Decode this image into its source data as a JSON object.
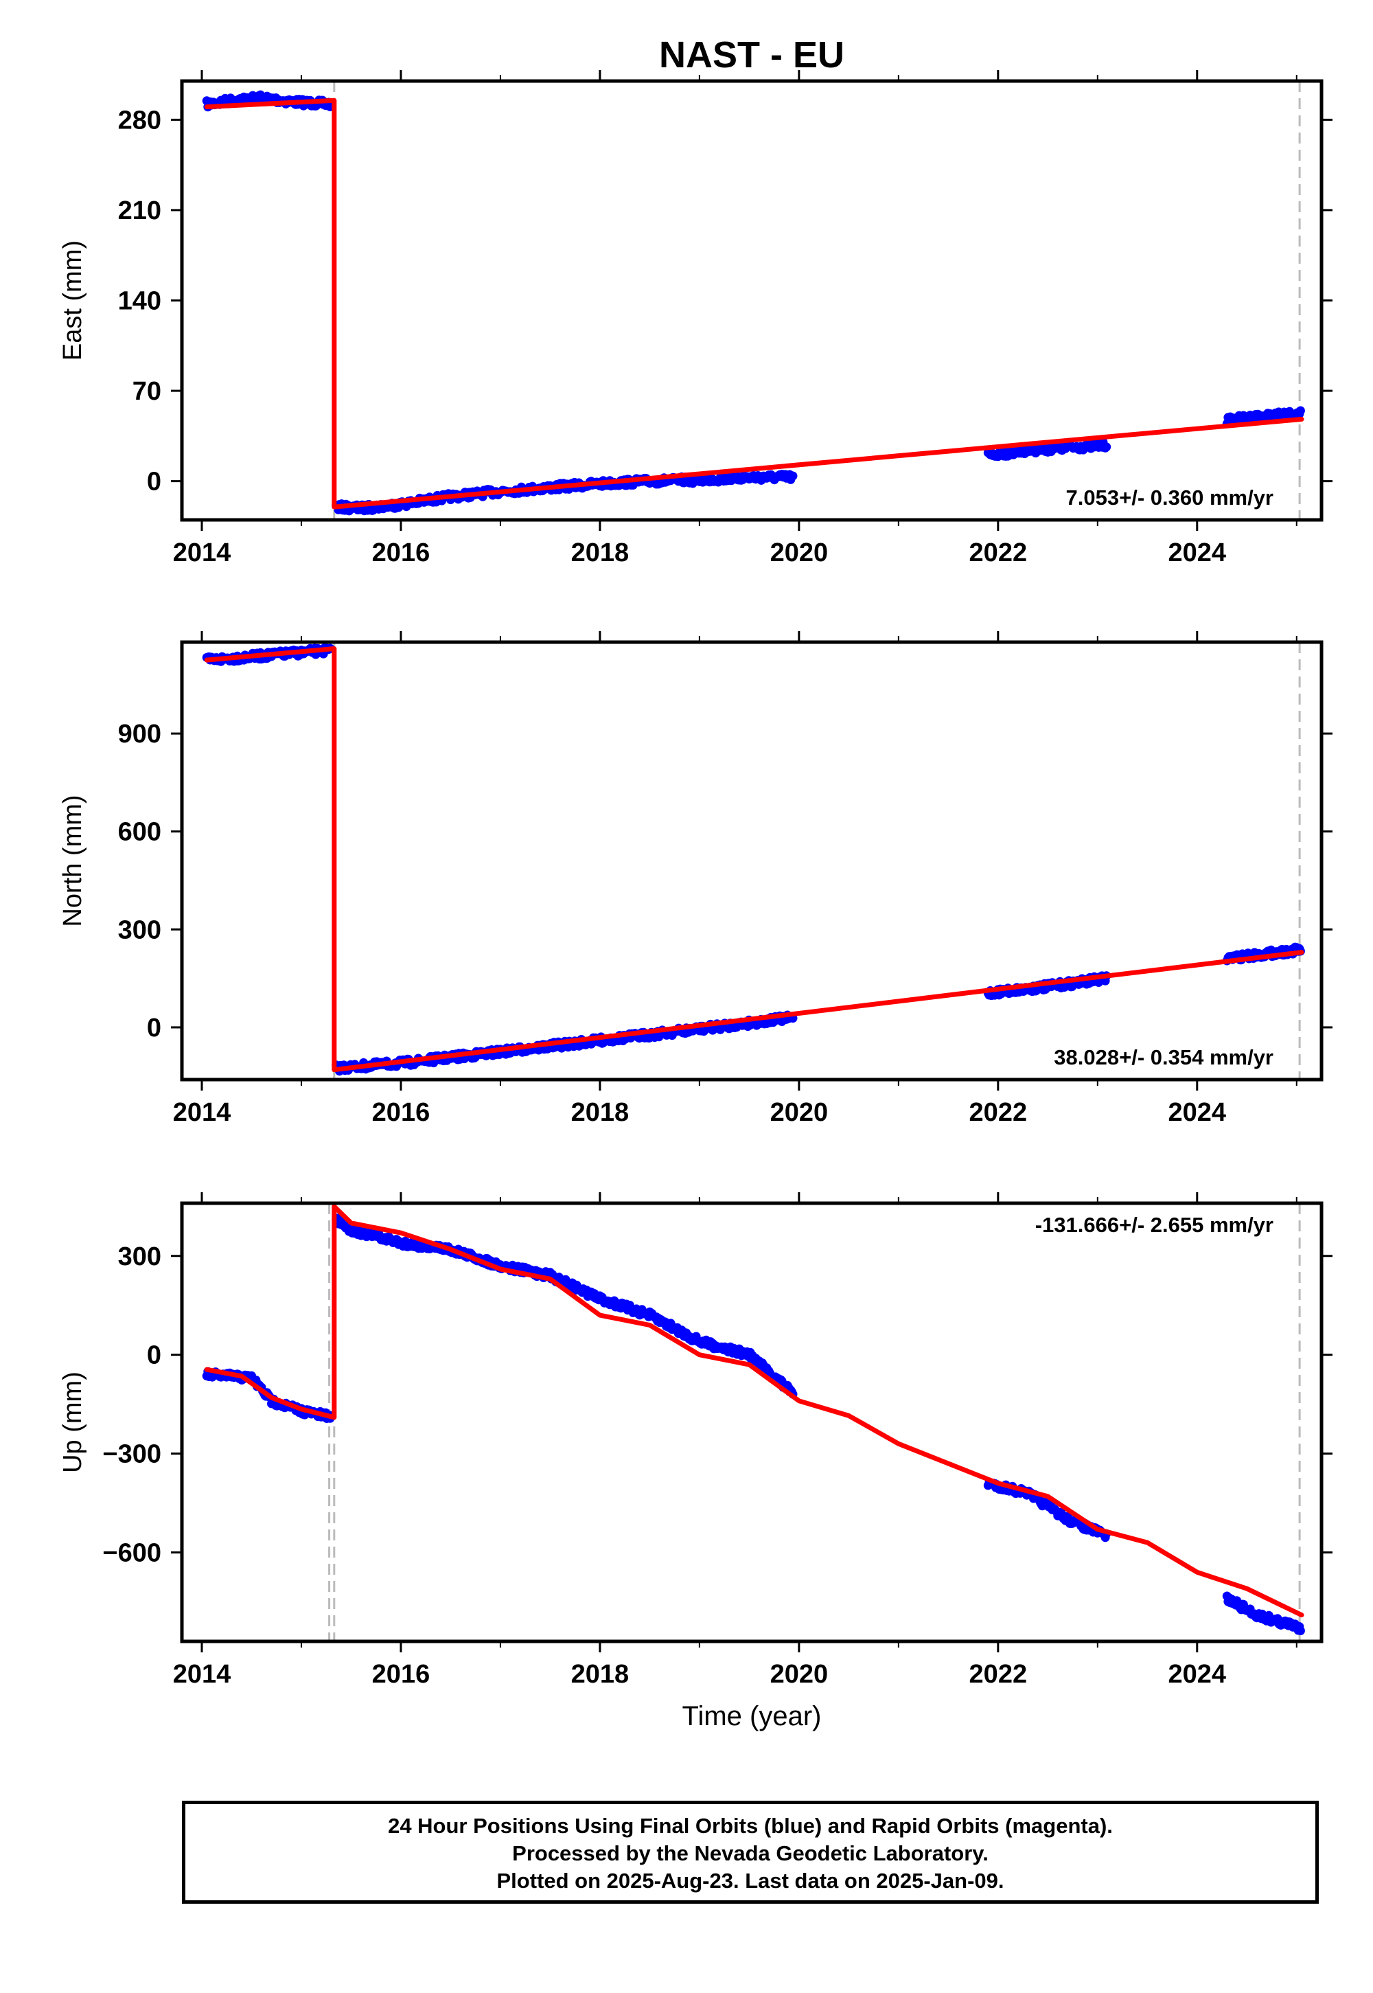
{
  "chart_data": [
    {
      "type": "scatter",
      "title": "NAST - EU",
      "xlabel": "",
      "ylabel": "East (mm)",
      "xlim": [
        2013.8,
        2025.25
      ],
      "ylim": [
        -30,
        310
      ],
      "xticks": [
        "2014",
        "2016",
        "2018",
        "2020",
        "2022",
        "2024"
      ],
      "yticks": [
        "0",
        "70",
        "140",
        "210",
        "280"
      ],
      "rate_label": "7.053+/- 0.360 mm/yr",
      "offset_lines_x": [
        2015.33,
        2025.03
      ],
      "series": [
        {
          "color": "#0000ff",
          "segments": [
            {
              "x": [
                2014.05,
                2014.3,
                2014.6,
                2014.9,
                2015.3
              ],
              "y": [
                292,
                295,
                297,
                294,
                292
              ]
            },
            {
              "x": [
                2015.35,
                2015.6,
                2016.0,
                2016.5,
                2017.0,
                2017.5,
                2018.0,
                2018.5,
                2019.0,
                2019.5,
                2019.95
              ],
              "y": [
                -20,
                -21,
                -18,
                -12,
                -8,
                -5,
                -2,
                0,
                1,
                3,
                3
              ]
            },
            {
              "x": [
                2021.9,
                2022.3,
                2022.7,
                2023.1
              ],
              "y": [
                20,
                24,
                26,
                28
              ]
            },
            {
              "x": [
                2024.3,
                2024.6,
                2025.05
              ],
              "y": [
                47,
                50,
                52
              ]
            }
          ]
        },
        {
          "color": "#ff0000",
          "segments": [
            {
              "x": [
                2014.05,
                2015.33
              ],
              "y": [
                290,
                295
              ]
            },
            {
              "x": [
                2015.33,
                2025.05
              ],
              "y": [
                -20,
                48
              ]
            }
          ]
        }
      ]
    },
    {
      "type": "scatter",
      "title": "",
      "xlabel": "",
      "ylabel": "North (mm)",
      "xlim": [
        2013.8,
        2025.25
      ],
      "ylim": [
        -160,
        1180
      ],
      "xticks": [
        "2014",
        "2016",
        "2018",
        "2020",
        "2022",
        "2024"
      ],
      "yticks": [
        "0",
        "300",
        "600",
        "900"
      ],
      "rate_label": "38.028+/- 0.354 mm/yr",
      "offset_lines_x": [
        2015.33,
        2025.03
      ],
      "series": [
        {
          "color": "#0000ff",
          "segments": [
            {
              "x": [
                2014.05,
                2014.5,
                2015.0,
                2015.3
              ],
              "y": [
                1125,
                1135,
                1148,
                1155
              ]
            },
            {
              "x": [
                2015.35,
                2016.0,
                2017.0,
                2018.0,
                2019.0,
                2019.95
              ],
              "y": [
                -125,
                -110,
                -75,
                -40,
                -5,
                30
              ]
            },
            {
              "x": [
                2021.9,
                2022.5,
                2023.1
              ],
              "y": [
                105,
                125,
                150
              ]
            },
            {
              "x": [
                2024.3,
                2024.7,
                2025.05
              ],
              "y": [
                212,
                225,
                238
              ]
            }
          ]
        },
        {
          "color": "#ff0000",
          "segments": [
            {
              "x": [
                2014.05,
                2015.33
              ],
              "y": [
                1125,
                1160
              ]
            },
            {
              "x": [
                2015.33,
                2025.05
              ],
              "y": [
                -130,
                230
              ]
            }
          ]
        }
      ]
    },
    {
      "type": "scatter",
      "title": "",
      "xlabel": "Time (year)",
      "ylabel": "Up (mm)",
      "xlim": [
        2013.8,
        2025.25
      ],
      "ylim": [
        -870,
        460
      ],
      "xticks": [
        "2014",
        "2016",
        "2018",
        "2020",
        "2022",
        "2024"
      ],
      "yticks": [
        "-600",
        "-300",
        "0",
        "300"
      ],
      "rate_label": "-131.666+/- 2.655 mm/yr",
      "offset_lines_x": [
        2015.28,
        2015.33,
        2025.03
      ],
      "series": [
        {
          "color": "#0000ff",
          "segments": [
            {
              "x": [
                2014.05,
                2014.5,
                2014.7,
                2015.0,
                2015.3
              ],
              "y": [
                -60,
                -70,
                -140,
                -170,
                -190
              ]
            },
            {
              "x": [
                2015.35,
                2015.5,
                2016.0,
                2016.5,
                2017.0,
                2017.5,
                2018.0,
                2018.5,
                2019.0,
                2019.5,
                2019.95
              ],
              "y": [
                410,
                380,
                340,
                320,
                270,
                240,
                170,
                120,
                40,
                0,
                -120
              ]
            },
            {
              "x": [
                2021.9,
                2022.3,
                2022.7,
                2023.1
              ],
              "y": [
                -390,
                -420,
                -500,
                -550
              ]
            },
            {
              "x": [
                2024.3,
                2024.6,
                2025.05
              ],
              "y": [
                -740,
                -790,
                -830
              ]
            }
          ]
        },
        {
          "color": "#ff0000",
          "segments": [
            {
              "x": [
                2014.05,
                2014.4,
                2014.7,
                2015.0,
                2015.33
              ],
              "y": [
                -45,
                -65,
                -130,
                -165,
                -190
              ]
            },
            {
              "x": [
                2015.33,
                2015.5,
                2016.0,
                2016.5,
                2017.0,
                2017.5,
                2018.0,
                2018.5,
                2019.0,
                2019.5,
                2020.0,
                2020.5,
                2021.0,
                2021.5,
                2022.0,
                2022.5,
                2023.0,
                2023.5,
                2024.0,
                2024.5,
                2025.05
              ],
              "y": [
                450,
                400,
                370,
                320,
                260,
                230,
                120,
                90,
                0,
                -30,
                -140,
                -185,
                -270,
                -330,
                -390,
                -430,
                -530,
                -570,
                -660,
                -710,
                -790
              ]
            }
          ]
        }
      ]
    }
  ],
  "footer": {
    "line1": "24 Hour Positions Using Final Orbits (blue) and Rapid Orbits (magenta).",
    "line2": "Processed by the Nevada Geodetic Laboratory.",
    "line3": "Plotted on 2025-Aug-23. Last data on 2025-Jan-09."
  }
}
